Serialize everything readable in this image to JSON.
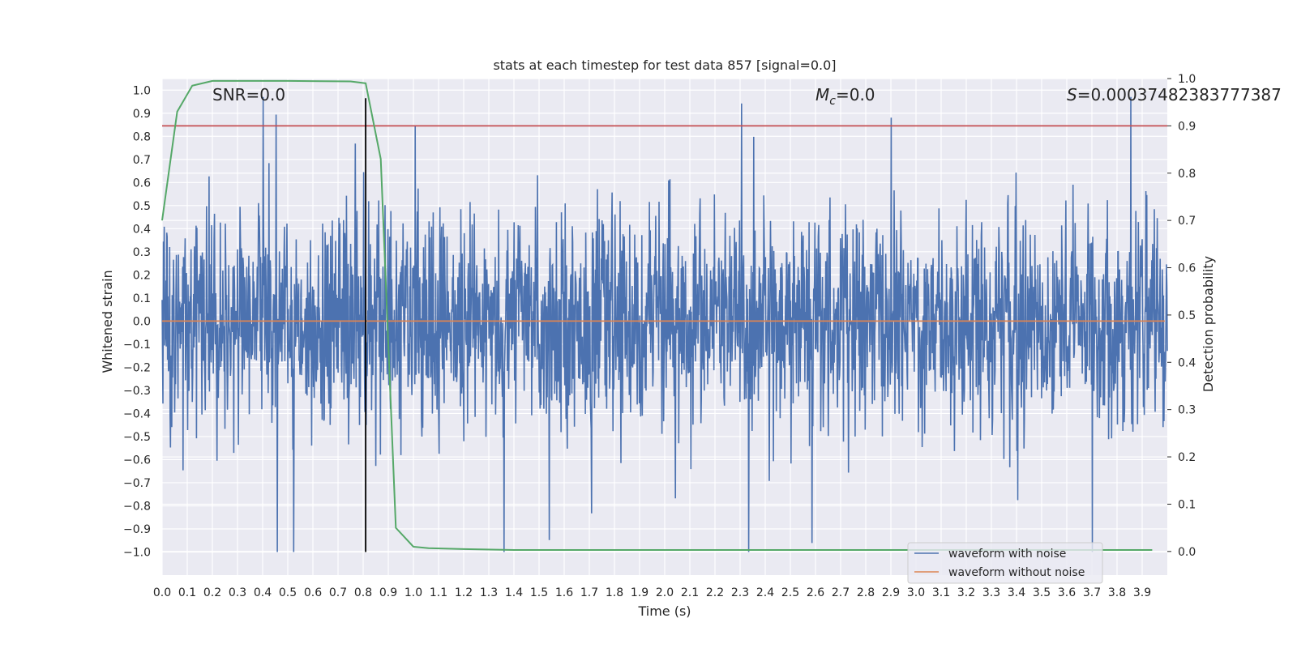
{
  "chart_data": {
    "type": "line",
    "title": "stats at each timestep for test data 857 [signal=0.0]",
    "xlabel": "Time (s)",
    "ylabel": "Whitened strain",
    "y2label": "Detection probability",
    "xlim": [
      0.0,
      4.0
    ],
    "ylim": [
      -1.1,
      1.05
    ],
    "y2lim": [
      -0.05,
      1.0
    ],
    "xticks": [
      0.0,
      0.1,
      0.2,
      0.3,
      0.4,
      0.5,
      0.6,
      0.7,
      0.8,
      0.9,
      1.0,
      1.1,
      1.2,
      1.3,
      1.4,
      1.5,
      1.6,
      1.7,
      1.8,
      1.9,
      2.0,
      2.1,
      2.2,
      2.3,
      2.4,
      2.5,
      2.6,
      2.7,
      2.8,
      2.9,
      3.0,
      3.1,
      3.2,
      3.3,
      3.4,
      3.5,
      3.6,
      3.7,
      3.8,
      3.9
    ],
    "xtick_labels": [
      "0.0",
      "0.1",
      "0.2",
      "0.3",
      "0.4",
      "0.5",
      "0.6",
      "0.7",
      "0.8",
      "0.9",
      "1.0",
      "1.1",
      "1.2",
      "1.3",
      "1.4",
      "1.5",
      "1.6",
      "1.7",
      "1.8",
      "1.9",
      "2.0",
      "2.1",
      "2.2",
      "2.3",
      "2.4",
      "2.5",
      "2.6",
      "2.7",
      "2.8",
      "2.9",
      "3.0",
      "3.1",
      "3.2",
      "3.3",
      "3.4",
      "3.5",
      "3.6",
      "3.7",
      "3.8",
      "3.9"
    ],
    "yticks": [
      1.0,
      0.9,
      0.8,
      0.7,
      0.6,
      0.5,
      0.4,
      0.3,
      0.2,
      0.1,
      0.0,
      -0.1,
      -0.2,
      -0.3,
      -0.4,
      -0.5,
      -0.6,
      -0.7,
      -0.8,
      -0.9,
      -1.0
    ],
    "ytick_labels": [
      "1.0",
      "0.9",
      "0.8",
      "0.7",
      "0.6",
      "0.5",
      "0.4",
      "0.3",
      "0.2",
      "0.1",
      "0.0",
      "−0.1",
      "−0.2",
      "−0.3",
      "−0.4",
      "−0.5",
      "−0.6",
      "−0.7",
      "−0.8",
      "−0.9",
      "−1.0"
    ],
    "y2ticks": [
      1.0,
      0.9,
      0.8,
      0.7,
      0.6,
      0.5,
      0.4,
      0.3,
      0.2,
      0.1,
      0.0
    ],
    "y2tick_labels": [
      "1.0",
      "0.9",
      "0.8",
      "0.7",
      "0.6",
      "0.5",
      "0.4",
      "0.3",
      "0.2",
      "0.1",
      "0.0"
    ],
    "annotations": {
      "snr": "SNR=0.0",
      "mc_symbol": "M",
      "mc_sub": "c",
      "mc_value": "=0.0",
      "s_symbol": "S",
      "s_value": "=0.00037482383777387",
      "marker_time": 0.81,
      "threshold_label": "threshold"
    },
    "threshold_y2": 0.9,
    "series": [
      {
        "name": "waveform with noise",
        "color": "#4c72b0",
        "axis": "left",
        "kind": "noise",
        "amplitude_range": [
          -1.0,
          0.97
        ]
      },
      {
        "name": "waveform without noise",
        "color": "#dd8452",
        "axis": "left",
        "x": [
          0.0,
          3.99
        ],
        "y": [
          0.0,
          0.0
        ]
      },
      {
        "name": "detection probability",
        "color": "#55a868",
        "axis": "right",
        "x": [
          0.0,
          0.06,
          0.12,
          0.2,
          0.3,
          0.5,
          0.75,
          0.81,
          0.87,
          0.93,
          1.0,
          1.06,
          1.2,
          1.4,
          1.6,
          2.0,
          2.5,
          3.0,
          3.5,
          3.94
        ],
        "y": [
          0.7,
          0.93,
          0.985,
          0.995,
          0.995,
          0.995,
          0.994,
          0.99,
          0.83,
          0.05,
          0.01,
          0.007,
          0.005,
          0.003,
          0.003,
          0.003,
          0.003,
          0.003,
          0.003,
          0.003
        ]
      }
    ],
    "legend": {
      "placement": "lower-right",
      "entries": [
        "waveform with noise",
        "waveform without noise"
      ]
    },
    "colors": {
      "background": "#eaeaf2",
      "grid": "#ffffff",
      "threshold": "#c44e52",
      "marker": "#000000"
    }
  }
}
